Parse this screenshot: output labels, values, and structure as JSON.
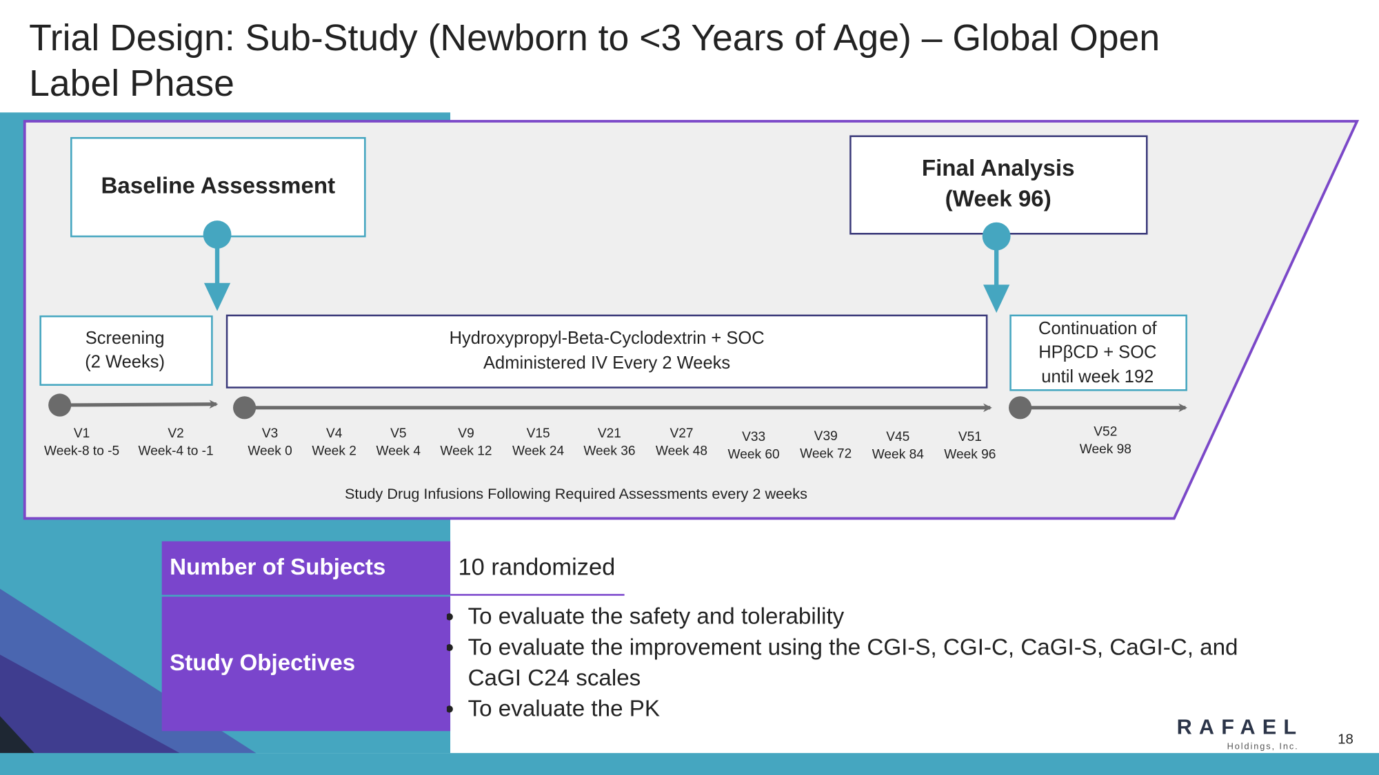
{
  "header": {
    "title_line1": "Trial Design: Sub-Study (Newborn to <3 Years of Age) – Global Open",
    "title_line2": "Label Phase"
  },
  "diagram": {
    "baseline": "Baseline Assessment",
    "final_line1": "Final Analysis",
    "final_line2": "(Week 96)",
    "screening_line1": "Screening",
    "screening_line2": "(2 Weeks)",
    "treatment_line1": "Hydroxypropyl-Beta-Cyclodextrin + SOC",
    "treatment_line2": "Administered IV Every 2 Weeks",
    "continuation_line1": "Continuation of",
    "continuation_line2": "HPβCD + SOC",
    "continuation_line3": "until week 192",
    "visits": [
      {
        "visit": "V1",
        "week": "Week-8 to -5"
      },
      {
        "visit": "V2",
        "week": "Week-4 to -1"
      },
      {
        "visit": "V3",
        "week": "Week 0"
      },
      {
        "visit": "V4",
        "week": "Week 2"
      },
      {
        "visit": "V5",
        "week": "Week 4"
      },
      {
        "visit": "V9",
        "week": "Week 12"
      },
      {
        "visit": "V15",
        "week": "Week 24"
      },
      {
        "visit": "V21",
        "week": "Week 36"
      },
      {
        "visit": "V27",
        "week": "Week 48"
      },
      {
        "visit": "V33",
        "week": "Week 60"
      },
      {
        "visit": "V39",
        "week": "Week 72"
      },
      {
        "visit": "V45",
        "week": "Week 84"
      },
      {
        "visit": "V51",
        "week": "Week 96"
      },
      {
        "visit": "V52",
        "week": "Week 98"
      }
    ],
    "note": "Study Drug Infusions Following Required Assessments every 2 weeks"
  },
  "table": {
    "subjects_label": "Number of Subjects",
    "subjects_value": "10 randomized",
    "objectives_label": "Study Objectives",
    "objectives": [
      "To evaluate the safety and tolerability",
      "To evaluate the improvement using the CGI-S, CGI-C, CaGI-S, CaGI-C, and CaGI C24 scales",
      "To evaluate the PK"
    ]
  },
  "footer": {
    "logo": "RAFAEL",
    "logo_sub": "Holdings, Inc.",
    "page": "18"
  }
}
